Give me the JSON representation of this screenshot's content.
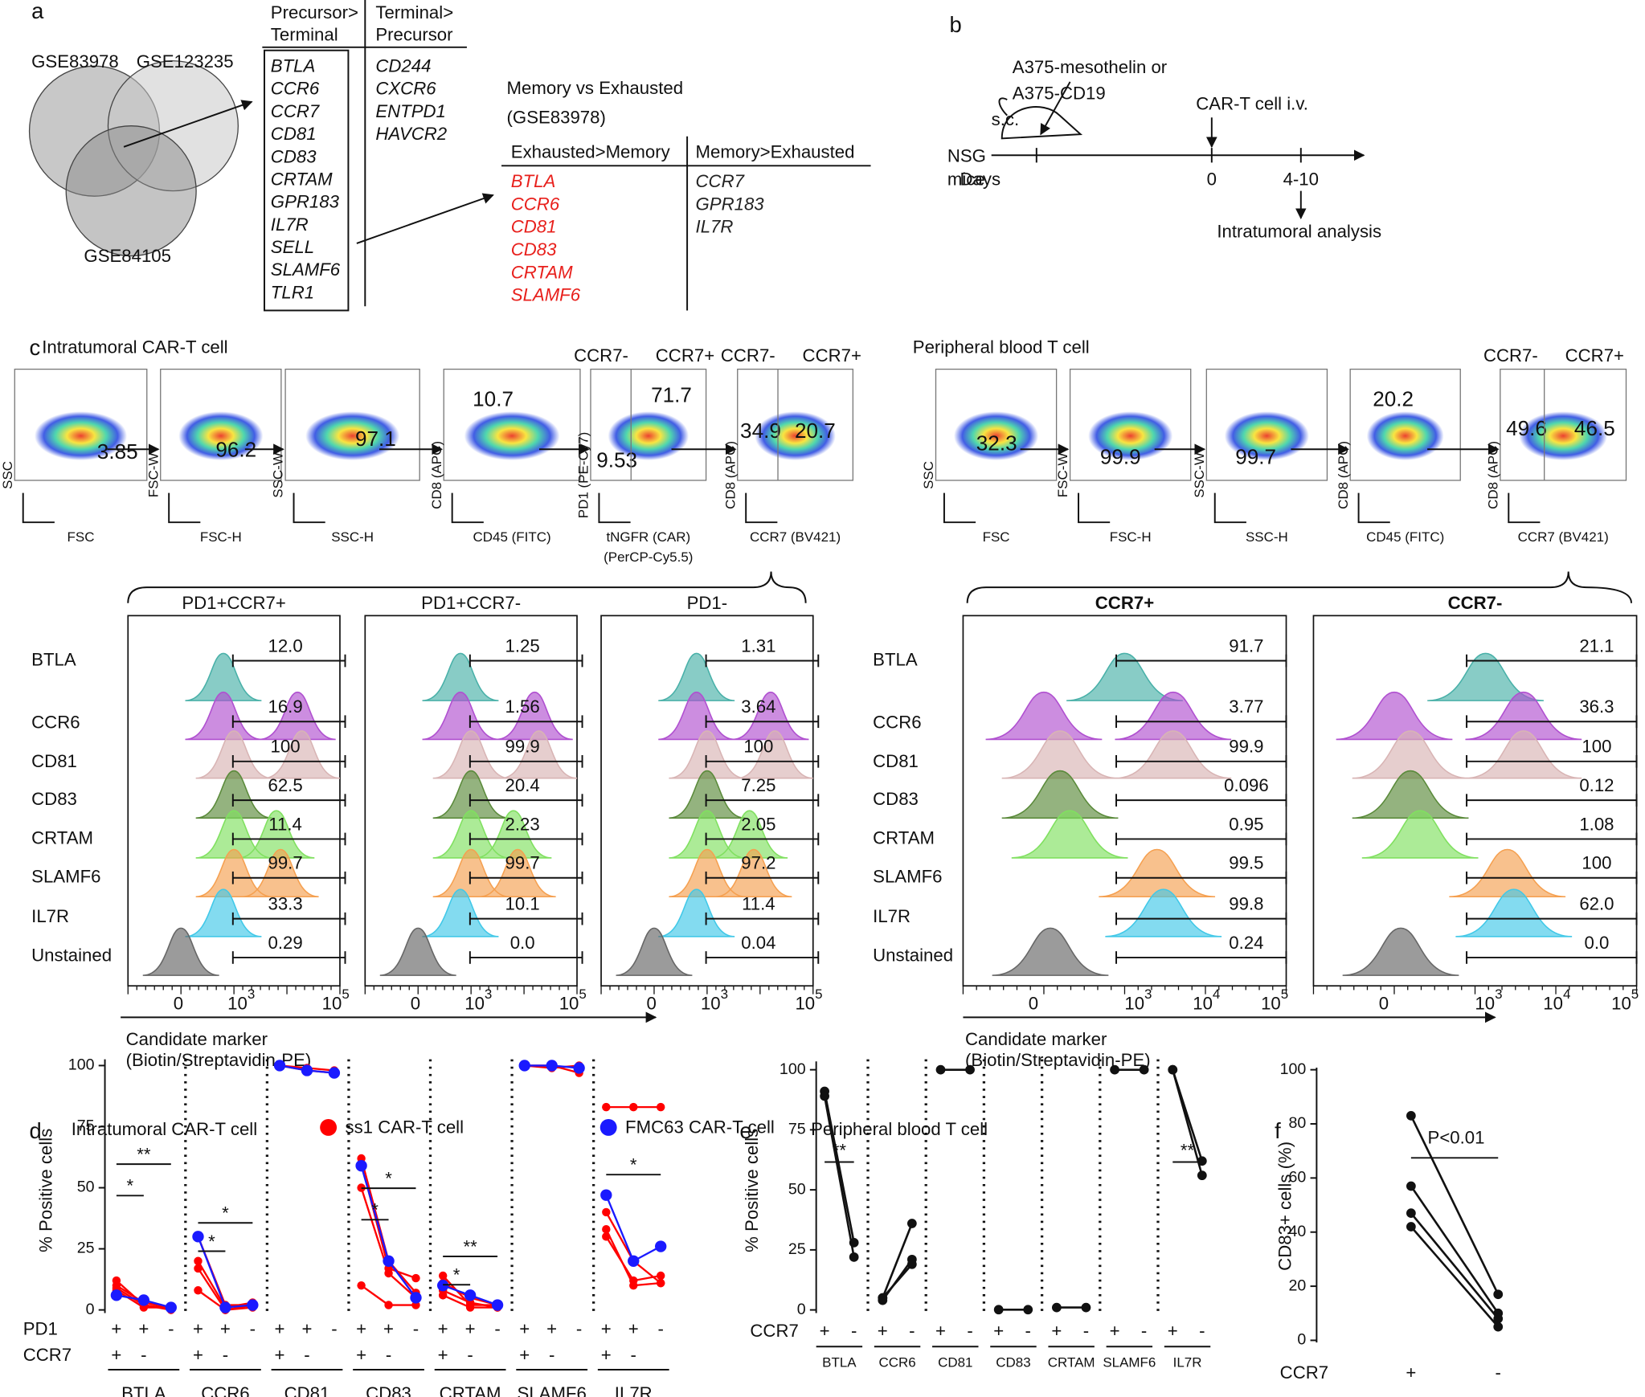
{
  "panel_a": {
    "label": "a",
    "venn": [
      "GSE83978",
      "GSE123235",
      "GSE84105"
    ],
    "table1": {
      "headers": [
        [
          "Precursor>",
          "Terminal"
        ],
        [
          "Terminal>",
          "Precursor"
        ]
      ],
      "columns": [
        [
          "BTLA",
          "CCR6",
          "CCR7",
          "CD81",
          "CD83",
          "CRTAM",
          "GPR183",
          "IL7R",
          "SELL",
          "SLAMF6",
          "TLR1"
        ],
        [
          "CD244",
          "CXCR6",
          "ENTPD1",
          "HAVCR2"
        ]
      ]
    },
    "table2": {
      "title": "Memory vs Exhausted",
      "subtitle": "(GSE83978)",
      "headers": [
        "Exhausted>Memory",
        "Memory>Exhausted"
      ],
      "columns": [
        [
          "BTLA",
          "CCR6",
          "CD81",
          "CD83",
          "CRTAM",
          "SLAMF6"
        ],
        [
          "CCR7",
          "GPR183",
          "IL7R"
        ]
      ],
      "colors": [
        "#e8201c",
        "#222222"
      ]
    }
  },
  "panel_b": {
    "label": "b",
    "tumor": [
      "A375-mesothelin or",
      "A375-CD19"
    ],
    "route": "s.c.",
    "mouse": [
      "NSG",
      "mice"
    ],
    "injection": "CAR-T cell i.v.",
    "axis": "Days",
    "days": [
      "0",
      "4-10"
    ],
    "readout": "Intratumoral analysis"
  },
  "panel_c": {
    "label": "c",
    "left": {
      "title": "Intratumoral CAR-T cell",
      "gates": [
        {
          "y": "SSC",
          "x": [
            "FSC"
          ],
          "values": [
            "3.85"
          ]
        },
        {
          "y": "FSC-W",
          "x": [
            "FSC-H"
          ],
          "values": [
            "96.2"
          ]
        },
        {
          "y": "SSC-W",
          "x": [
            "SSC-H"
          ],
          "values": [
            "97.1"
          ]
        },
        {
          "y": "CD8 (APC)",
          "x": [
            "CD45 (FITC)"
          ],
          "values": [
            "10.7"
          ]
        },
        {
          "y": "PD1 (PE-Cy7)",
          "x": [
            "tNGFR (CAR)",
            "(PerCP-Cy5.5)"
          ],
          "values": [
            "71.7",
            "9.53"
          ]
        },
        {
          "y": "CD8 (APC)",
          "x": [
            "CCR7 (BV421)"
          ],
          "values": [
            "34.9",
            "20.7"
          ]
        }
      ],
      "quadrant_headers": [
        "CCR7-",
        "CCR7+"
      ],
      "columns": [
        "PD1+CCR7+",
        "PD1+CCR7-",
        "PD1-"
      ],
      "rows": [
        "BTLA",
        "CCR6",
        "CD81",
        "CD83",
        "CRTAM",
        "SLAMF6",
        "IL7R",
        "Unstained"
      ],
      "values": [
        [
          "12.0",
          "16.9",
          "100",
          "62.5",
          "11.4",
          "99.7",
          "33.3",
          "0.29"
        ],
        [
          "1.25",
          "1.56",
          "99.9",
          "20.4",
          "2.23",
          "99.7",
          "10.1",
          "0.0"
        ],
        [
          "1.31",
          "3.64",
          "100",
          "7.25",
          "2.05",
          "97.2",
          "11.4",
          "0.04"
        ]
      ],
      "ticks": [
        {
          "text": "0"
        },
        {
          "base": "10",
          "exp": "3"
        },
        {
          "base": "10",
          "exp": "5"
        }
      ],
      "axis_label": [
        "Candidate marker",
        "(Biotin/Streptavidin-PE)"
      ]
    },
    "right": {
      "title": "Peripheral blood T cell",
      "gates": [
        {
          "y": "SSC",
          "x": [
            "FSC"
          ],
          "values": [
            "32.3"
          ]
        },
        {
          "y": "FSC-W",
          "x": [
            "FSC-H"
          ],
          "values": [
            "99.9"
          ]
        },
        {
          "y": "SSC-W",
          "x": [
            "SSC-H"
          ],
          "values": [
            "99.7"
          ]
        },
        {
          "y": "CD8 (APC)",
          "x": [
            "CD45 (FITC)"
          ],
          "values": [
            "20.2"
          ]
        },
        {
          "y": "CD8 (APC)",
          "x": [
            "CCR7 (BV421)"
          ],
          "values": [
            "49.6",
            "46.5"
          ]
        }
      ],
      "quadrant_headers": [
        "CCR7-",
        "CCR7+"
      ],
      "columns": [
        "CCR7+",
        "CCR7-"
      ],
      "rows": [
        "BTLA",
        "CCR6",
        "CD81",
        "CD83",
        "CRTAM",
        "SLAMF6",
        "IL7R",
        "Unstained"
      ],
      "values": [
        [
          "91.7",
          "3.77",
          "99.9",
          "0.096",
          "0.95",
          "99.5",
          "99.8",
          "0.24"
        ],
        [
          "21.1",
          "36.3",
          "100",
          "0.12",
          "1.08",
          "100",
          "62.0",
          "0.0"
        ]
      ],
      "ticks": [
        {
          "text": "0"
        },
        {
          "base": "10",
          "exp": "3"
        },
        {
          "base": "10",
          "exp": "4"
        },
        {
          "base": "10",
          "exp": "5"
        }
      ],
      "axis_label": [
        "Candidate marker",
        "(Biotin/Streptavidin-PE)"
      ]
    }
  },
  "panel_d": {
    "label": "d",
    "title": "Intratumoral CAR-T cell",
    "ylabel": "% Positive cells",
    "ylim": [
      0,
      100
    ],
    "yticks": [
      0,
      25,
      50,
      75,
      100
    ],
    "legend": [
      {
        "name": "ss1 CAR-T cell",
        "color": "#ff0000"
      },
      {
        "name": "FMC63 CAR-T cell",
        "color": "#1a1aff"
      }
    ],
    "row_labels": [
      "PD1",
      "CCR7"
    ],
    "pd1_signs": [
      "+",
      "+",
      "-"
    ],
    "ccr7_signs": [
      "+",
      "-"
    ],
    "groups": [
      {
        "name": "BTLA",
        "series": [
          [
            [
              12,
              2,
              0.5
            ],
            [
              8,
              1,
              1
            ],
            [
              10,
              3,
              1
            ],
            [
              9,
              2,
              0
            ]
          ],
          [
            [
              6,
              4,
              1
            ]
          ]
        ],
        "sig": [
          "**",
          "*"
        ]
      },
      {
        "name": "CCR6",
        "series": [
          [
            [
              30,
              2,
              2
            ],
            [
              20,
              1,
              3
            ],
            [
              17,
              0,
              2
            ],
            [
              8,
              0,
              1
            ]
          ],
          [
            [
              30,
              1,
              2
            ]
          ]
        ],
        "sig": [
          "*",
          "*"
        ]
      },
      {
        "name": "CD81",
        "series": [
          [
            [
              100,
              99,
              98
            ],
            [
              100,
              98,
              97
            ]
          ],
          [
            [
              100,
              98,
              97
            ]
          ]
        ],
        "sig": []
      },
      {
        "name": "CD83",
        "series": [
          [
            [
              62,
              20,
              7
            ],
            [
              60,
              17,
              13
            ],
            [
              50,
              15,
              5
            ],
            [
              10,
              2,
              2
            ]
          ],
          [
            [
              59,
              20,
              5
            ]
          ]
        ],
        "sig": [
          "*",
          "*"
        ]
      },
      {
        "name": "CRTAM",
        "series": [
          [
            [
              14,
              2,
              2
            ],
            [
              11,
              5,
              2
            ],
            [
              8,
              3,
              1
            ],
            [
              6,
              1,
              1
            ]
          ],
          [
            [
              10,
              6,
              2
            ]
          ]
        ],
        "sig": [
          "**",
          "*"
        ]
      },
      {
        "name": "SLAMF6",
        "series": [
          [
            [
              100,
              100,
              97
            ],
            [
              100,
              99,
              100
            ]
          ],
          [
            [
              100,
              100,
              99
            ]
          ]
        ],
        "sig": []
      },
      {
        "name": "IL7R",
        "series": [
          [
            [
              83,
              83,
              83
            ],
            [
              40,
              20,
              11
            ],
            [
              33,
              10,
              11
            ],
            [
              30,
              12,
              14
            ]
          ],
          [
            [
              47,
              20,
              26
            ]
          ]
        ],
        "sig": [
          "*"
        ]
      }
    ]
  },
  "panel_e": {
    "label": "e",
    "title": "Peripheral blood T cell",
    "ylabel": "% Positive cells",
    "ylim": [
      0,
      100
    ],
    "yticks": [
      0,
      25,
      50,
      75,
      100
    ],
    "row_label": "CCR7",
    "signs": [
      "+",
      "-"
    ],
    "groups": [
      {
        "name": "BTLA",
        "pairs": [
          [
            91,
            28
          ],
          [
            89,
            22
          ]
        ],
        "sig": [
          "**"
        ]
      },
      {
        "name": "CCR6",
        "pairs": [
          [
            5,
            36
          ],
          [
            4,
            21
          ],
          [
            5,
            19
          ]
        ],
        "sig": []
      },
      {
        "name": "CD81",
        "pairs": [
          [
            100,
            100
          ]
        ],
        "sig": []
      },
      {
        "name": "CD83",
        "pairs": [
          [
            0.1,
            0.1
          ]
        ],
        "sig": []
      },
      {
        "name": "CRTAM",
        "pairs": [
          [
            1,
            1
          ]
        ],
        "sig": []
      },
      {
        "name": "SLAMF6",
        "pairs": [
          [
            100,
            100
          ]
        ],
        "sig": []
      },
      {
        "name": "IL7R",
        "pairs": [
          [
            100,
            62
          ],
          [
            100,
            56
          ]
        ],
        "sig": [
          "**"
        ]
      }
    ]
  },
  "panel_f": {
    "label": "f",
    "ylabel": "CD83+ cells (%)",
    "ylim": [
      0,
      100
    ],
    "yticks": [
      0,
      20,
      40,
      60,
      80,
      100
    ],
    "pairs": [
      [
        83,
        17
      ],
      [
        57,
        10
      ],
      [
        47,
        8
      ],
      [
        42,
        5
      ]
    ],
    "sig": "P<0.01",
    "row_label": "CCR7",
    "signs": [
      "+",
      "-"
    ]
  }
}
